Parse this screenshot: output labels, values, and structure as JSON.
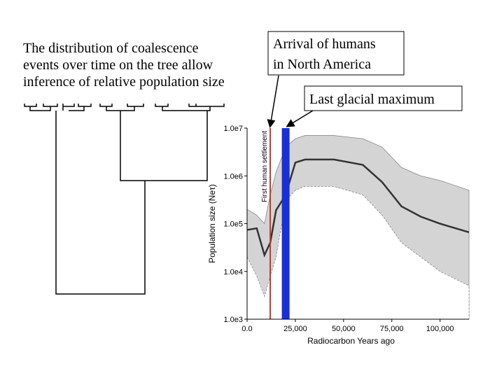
{
  "intro": {
    "lines": [
      "The distribution of coalescence",
      "events over time on the tree allow",
      "inference of relative population size"
    ]
  },
  "callouts": [
    {
      "lines": [
        "Arrival of humans",
        "in North America"
      ]
    },
    {
      "lines": [
        "Last glacial maximum"
      ]
    }
  ],
  "chart_data": {
    "type": "area",
    "xlabel": "Radiocarbon Years ago",
    "ylabel": "Population size (Neτ)",
    "log_y": true,
    "xlim": [
      0,
      115000
    ],
    "ylim": [
      1000,
      10000000
    ],
    "xticks": [
      {
        "value": 0,
        "label": "0.0"
      },
      {
        "value": 25000,
        "label": "25,000"
      },
      {
        "value": 50000,
        "label": "50,000"
      },
      {
        "value": 75000,
        "label": "75,000"
      },
      {
        "value": 100000,
        "label": "100,000"
      }
    ],
    "yticks": [
      {
        "value": 1000,
        "label": "1.0e3"
      },
      {
        "value": 10000,
        "label": "1.0e4"
      },
      {
        "value": 100000,
        "label": "1.0e5"
      },
      {
        "value": 1000000,
        "label": "1.0e6"
      },
      {
        "value": 10000000,
        "label": "1.0e7"
      }
    ],
    "x": [
      0,
      5000,
      9000,
      12000,
      15000,
      20000,
      25000,
      30000,
      45000,
      60000,
      70000,
      80000,
      90000,
      100000,
      115000
    ],
    "series": [
      {
        "role": "upper",
        "color": "#d4d4d4",
        "values": [
          200000,
          150000,
          100000,
          400000,
          1200000,
          4000000,
          6000000,
          7000000,
          7000000,
          6000000,
          4000000,
          1500000,
          1000000,
          800000,
          500000
        ]
      },
      {
        "role": "lower",
        "color": "#ffffff",
        "values": [
          20000,
          8000,
          3000,
          8000,
          20000,
          300000,
          500000,
          600000,
          600000,
          400000,
          150000,
          40000,
          20000,
          10000,
          5000
        ]
      },
      {
        "role": "median",
        "color": "#333333",
        "values": [
          74000,
          80000,
          22000,
          40000,
          190000,
          400000,
          1900000,
          2200000,
          2200000,
          1700000,
          740000,
          230000,
          140000,
          100000,
          66000
        ]
      }
    ],
    "markers": [
      {
        "label": "First human settlement",
        "x": 12000,
        "color": "#c0392b"
      }
    ],
    "band": {
      "x": [
        18000,
        22000
      ],
      "color": "#1a2fd6"
    }
  }
}
